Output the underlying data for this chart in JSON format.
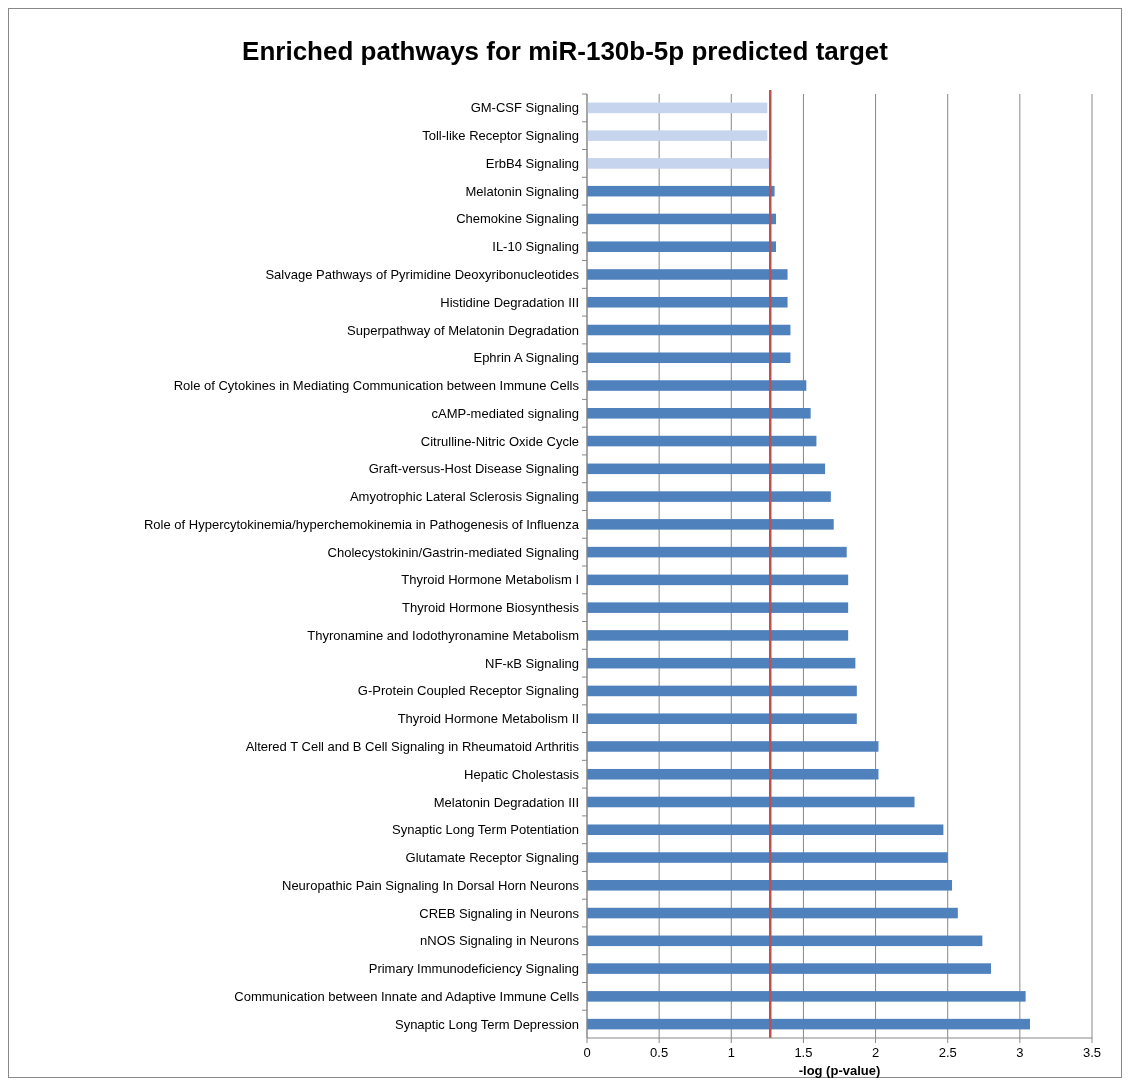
{
  "chart_data": {
    "type": "bar",
    "orientation": "horizontal",
    "title": "Enriched pathways for miR-130b-5p predicted target",
    "xlabel": "-log (p-value)",
    "categories": [
      "GM-CSF Signaling",
      "Toll-like Receptor Signaling",
      "ErbB4 Signaling",
      "Melatonin Signaling",
      "Chemokine Signaling",
      "IL-10 Signaling",
      "Salvage Pathways of Pyrimidine Deoxyribonucleotides",
      "Histidine Degradation III",
      "Superpathway of Melatonin Degradation",
      "Ephrin A Signaling",
      "Role of Cytokines in Mediating Communication between Immune Cells",
      "cAMP-mediated signaling",
      "Citrulline-Nitric Oxide Cycle",
      "Graft-versus-Host Disease Signaling",
      "Amyotrophic Lateral Sclerosis Signaling",
      "Role of Hypercytokinemia/hyperchemokinemia in Pathogenesis of Influenza",
      "Cholecystokinin/Gastrin-mediated Signaling",
      "Thyroid Hormone Metabolism I",
      "Thyroid Hormone Biosynthesis",
      "Thyronamine and Iodothyronamine Metabolism",
      "NF-κB Signaling",
      "G-Protein Coupled Receptor Signaling",
      "Thyroid Hormone Metabolism II",
      "Altered T Cell and B Cell Signaling in Rheumatoid Arthritis",
      "Hepatic Cholestasis",
      "Melatonin Degradation III",
      "Synaptic Long Term Potentiation",
      "Glutamate Receptor Signaling",
      "Neuropathic Pain Signaling In Dorsal Horn Neurons",
      "CREB Signaling in Neurons",
      "nNOS Signaling in Neurons",
      "Primary Immunodeficiency Signaling",
      "Communication between Innate and Adaptive Immune Cells",
      "Synaptic Long Term Depression"
    ],
    "values": [
      1.25,
      1.25,
      1.27,
      1.3,
      1.31,
      1.31,
      1.39,
      1.39,
      1.41,
      1.41,
      1.52,
      1.55,
      1.59,
      1.65,
      1.69,
      1.71,
      1.8,
      1.81,
      1.81,
      1.81,
      1.86,
      1.87,
      1.87,
      2.02,
      2.02,
      2.27,
      2.47,
      2.5,
      2.53,
      2.57,
      2.74,
      2.8,
      3.04,
      3.07
    ],
    "colors": [
      "#c6d4ee",
      "#c6d4ee",
      "#c6d4ee",
      "#4f81bd",
      "#4f81bd",
      "#4f81bd",
      "#4f81bd",
      "#4f81bd",
      "#4f81bd",
      "#4f81bd",
      "#4f81bd",
      "#4f81bd",
      "#4f81bd",
      "#4f81bd",
      "#4f81bd",
      "#4f81bd",
      "#4f81bd",
      "#4f81bd",
      "#4f81bd",
      "#4f81bd",
      "#4f81bd",
      "#4f81bd",
      "#4f81bd",
      "#4f81bd",
      "#4f81bd",
      "#4f81bd",
      "#4f81bd",
      "#4f81bd",
      "#4f81bd",
      "#4f81bd",
      "#4f81bd",
      "#4f81bd",
      "#4f81bd",
      "#4f81bd"
    ],
    "xlim": [
      0,
      3.5
    ],
    "xticks": [
      0,
      0.5,
      1,
      1.5,
      2,
      2.5,
      3,
      3.5
    ],
    "grid": "x",
    "ref_lines": [
      {
        "axis": "x",
        "value": 1.27,
        "color": "#c0504d"
      }
    ]
  }
}
